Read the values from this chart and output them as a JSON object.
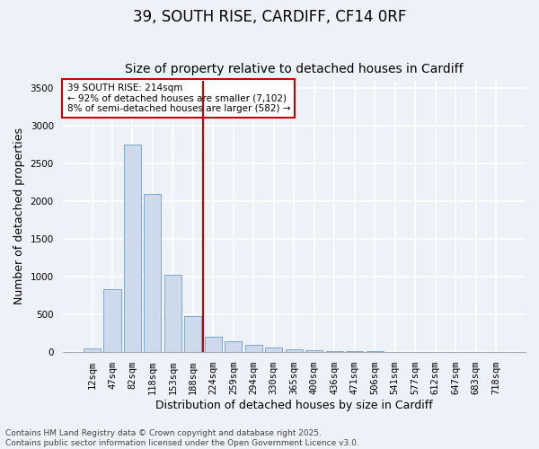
{
  "title_line1": "39, SOUTH RISE, CARDIFF, CF14 0RF",
  "title_line2": "Size of property relative to detached houses in Cardiff",
  "xlabel": "Distribution of detached houses by size in Cardiff",
  "ylabel": "Number of detached properties",
  "categories": [
    "12sqm",
    "47sqm",
    "82sqm",
    "118sqm",
    "153sqm",
    "188sqm",
    "224sqm",
    "259sqm",
    "294sqm",
    "330sqm",
    "365sqm",
    "400sqm",
    "436sqm",
    "471sqm",
    "506sqm",
    "541sqm",
    "577sqm",
    "612sqm",
    "647sqm",
    "683sqm",
    "718sqm"
  ],
  "values": [
    50,
    830,
    2750,
    2100,
    1020,
    470,
    200,
    140,
    90,
    60,
    35,
    15,
    8,
    5,
    3,
    2,
    1,
    1,
    0,
    0,
    0
  ],
  "bar_color": "#cddaec",
  "bar_edge_color": "#7ba7cc",
  "vline_x_index": 6,
  "vline_color": "#cc0000",
  "annotation_text": "39 SOUTH RISE: 214sqm\n← 92% of detached houses are smaller (7,102)\n8% of semi-detached houses are larger (582) →",
  "annotation_box_color": "#ffffff",
  "annotation_box_edge_color": "#cc0000",
  "ylim": [
    0,
    3600
  ],
  "yticks": [
    0,
    500,
    1000,
    1500,
    2000,
    2500,
    3000,
    3500
  ],
  "footnote": "Contains HM Land Registry data © Crown copyright and database right 2025.\nContains public sector information licensed under the Open Government Licence v3.0.",
  "background_color": "#edf1f8",
  "grid_color": "#ffffff",
  "title_fontsize": 12,
  "subtitle_fontsize": 10,
  "tick_fontsize": 7.5,
  "axis_label_fontsize": 9,
  "annotation_fontsize": 7.5,
  "footnote_fontsize": 6.5
}
